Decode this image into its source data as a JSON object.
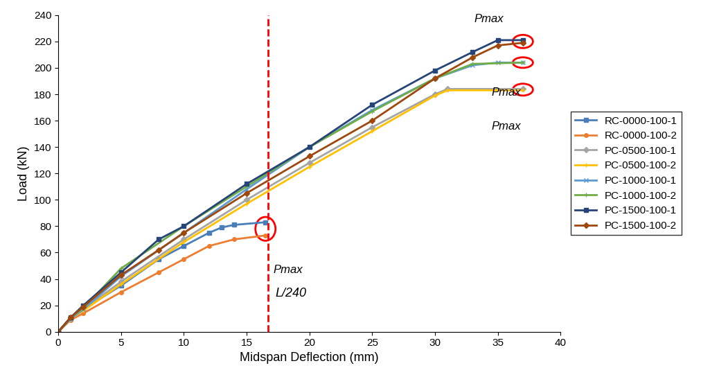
{
  "chart_data": {
    "type": "line",
    "x_label": "Midspan Deflection (mm)",
    "y_label": "Load (kN)",
    "xlim": [
      0,
      40
    ],
    "xticks": [
      0,
      5,
      10,
      15,
      20,
      25,
      30,
      35,
      40
    ],
    "ylim": [
      0,
      240
    ],
    "yticks": [
      0,
      20,
      40,
      60,
      80,
      100,
      120,
      140,
      160,
      180,
      200,
      220,
      240
    ],
    "grid": false,
    "legend": "right",
    "vline": {
      "x": 16.7,
      "label": "L/240",
      "color": "#ff0000",
      "line_style": "dashed"
    },
    "annotations": [
      {
        "text": "Pmax",
        "series": [
          "RC-0000-100-1",
          "RC-0000-100-2"
        ],
        "color": "#ff0000"
      },
      {
        "text": "Pmax",
        "series": [
          "PC-1500-100-1",
          "PC-1500-100-2"
        ],
        "color": "#ff0000"
      },
      {
        "text": "Pmax",
        "series": [
          "PC-1000-100-1",
          "PC-1000-100-2"
        ],
        "color": "#ff0000"
      },
      {
        "text": "Pmax",
        "series": [
          "PC-0500-100-1",
          "PC-0500-100-2"
        ],
        "color": "#ff0000"
      }
    ],
    "series": [
      {
        "name": "RC-0000-100-1",
        "color": "#4a7ebb",
        "marker": "square",
        "x": [
          0,
          1,
          2,
          5,
          8,
          10,
          12,
          13,
          14,
          16.5
        ],
        "values": [
          0,
          10,
          17,
          35,
          55,
          65,
          75,
          79,
          81,
          83
        ]
      },
      {
        "name": "RC-0000-100-2",
        "color": "#ed7d31",
        "marker": "circle",
        "x": [
          0,
          1,
          2,
          5,
          8,
          10,
          12,
          14,
          16.5
        ],
        "values": [
          0,
          9,
          14,
          30,
          45,
          55,
          65,
          70,
          73
        ]
      },
      {
        "name": "PC-0500-100-1",
        "color": "#a5a5a5",
        "marker": "diamond",
        "x": [
          0,
          1,
          2,
          5,
          10,
          15,
          20,
          25,
          30,
          31,
          37
        ],
        "values": [
          0,
          10,
          17,
          38,
          70,
          100,
          128,
          155,
          180,
          184,
          184
        ]
      },
      {
        "name": "PC-0500-100-2",
        "color": "#ffc000",
        "marker": "plus",
        "x": [
          0,
          1,
          2,
          5,
          10,
          15,
          20,
          25,
          30,
          31,
          37
        ],
        "values": [
          0,
          10,
          16,
          36,
          68,
          97,
          125,
          152,
          179,
          183,
          183
        ]
      },
      {
        "name": "PC-1000-100-1",
        "color": "#5b9bd5",
        "marker": "x",
        "x": [
          0,
          1,
          2,
          5,
          10,
          15,
          20,
          25,
          30,
          33,
          35,
          37
        ],
        "values": [
          0,
          10,
          17,
          42,
          75,
          108,
          140,
          168,
          192,
          202,
          204,
          204
        ]
      },
      {
        "name": "PC-1000-100-2",
        "color": "#70ad47",
        "marker": "plus",
        "x": [
          0,
          1,
          2,
          5,
          10,
          15,
          20,
          25,
          30,
          33,
          37
        ],
        "values": [
          0,
          11,
          18,
          48,
          80,
          110,
          140,
          167,
          192,
          203,
          204
        ]
      },
      {
        "name": "PC-1500-100-1",
        "color": "#264478",
        "marker": "square",
        "x": [
          0,
          1,
          2,
          5,
          8,
          10,
          15,
          20,
          25,
          30,
          33,
          35,
          37
        ],
        "values": [
          0,
          11,
          20,
          45,
          70,
          80,
          112,
          140,
          172,
          198,
          212,
          221,
          221
        ]
      },
      {
        "name": "PC-1500-100-2",
        "color": "#9e480e",
        "marker": "diamond",
        "x": [
          0,
          1,
          2,
          5,
          8,
          10,
          15,
          20,
          25,
          30,
          33,
          35,
          37
        ],
        "values": [
          0,
          11,
          19,
          43,
          62,
          75,
          105,
          133,
          160,
          192,
          208,
          217,
          219
        ]
      }
    ]
  }
}
